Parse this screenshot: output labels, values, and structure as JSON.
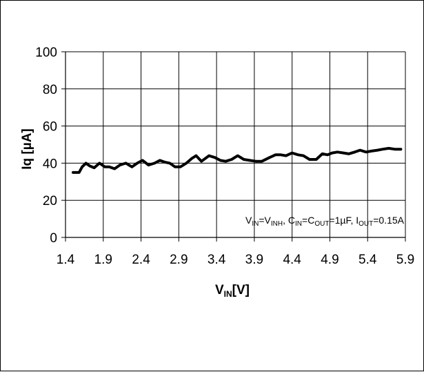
{
  "chart_data": {
    "type": "line",
    "xlabel": {
      "main": "V",
      "sub": "IN",
      "unit": "[V]"
    },
    "ylabel": "Iq [µA]",
    "xlim": [
      1.4,
      5.9
    ],
    "ylim": [
      0,
      100
    ],
    "xticks": [
      "1.4",
      "1.9",
      "2.4",
      "2.9",
      "3.4",
      "3.9",
      "4.4",
      "4.9",
      "5.4",
      "5.9"
    ],
    "yticks": [
      "0",
      "20",
      "40",
      "60",
      "80",
      "100"
    ],
    "grid": true,
    "annotation": {
      "p1": "V",
      "p1s": "IN",
      "p2": "=V",
      "p2s": "INH",
      "p3": ", C",
      "p3s": "IN",
      "p4": "=C",
      "p4s": "OUT",
      "p5": "=1µF, I",
      "p5s": "OUT",
      "p6": "=0.15A"
    },
    "series": [
      {
        "x": [
          1.5,
          1.58,
          1.62,
          1.67,
          1.72,
          1.78,
          1.85,
          1.92,
          1.98,
          2.05,
          2.12,
          2.2,
          2.28,
          2.35,
          2.42,
          2.5,
          2.58,
          2.65,
          2.72,
          2.78,
          2.85,
          2.92,
          3.0,
          3.07,
          3.13,
          3.2,
          3.3,
          3.38,
          3.45,
          3.52,
          3.6,
          3.68,
          3.76,
          3.84,
          3.92,
          4.0,
          4.1,
          4.18,
          4.25,
          4.32,
          4.4,
          4.48,
          4.55,
          4.63,
          4.72,
          4.8,
          4.87,
          4.93,
          5.0,
          5.08,
          5.15,
          5.23,
          5.3,
          5.38,
          5.45,
          5.53,
          5.6,
          5.68,
          5.76,
          5.84
        ],
        "y": [
          35,
          35,
          38,
          40,
          38.5,
          37.5,
          40,
          38,
          38,
          37,
          39,
          40,
          38,
          40,
          41.5,
          39,
          40,
          41.5,
          40.5,
          40,
          38,
          38,
          40,
          42.5,
          44,
          41,
          44,
          43,
          41.5,
          41,
          42,
          44,
          42,
          41.5,
          41,
          41,
          43,
          44.5,
          44.5,
          44,
          45.5,
          44.5,
          44,
          42,
          42,
          45,
          44.5,
          45.5,
          46,
          45.5,
          45,
          46,
          47,
          46,
          46.5,
          47,
          47.5,
          48,
          47.5,
          47.5
        ]
      }
    ]
  }
}
